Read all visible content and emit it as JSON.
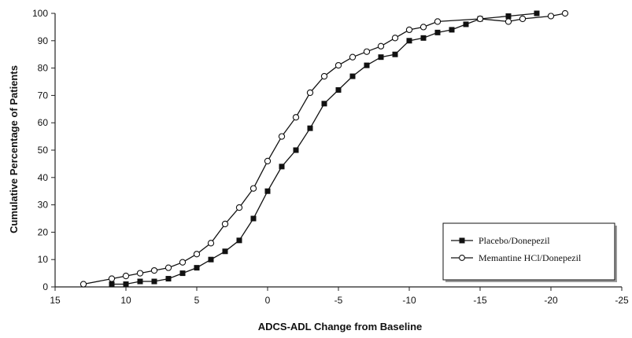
{
  "chart_data": {
    "type": "line",
    "title": "",
    "xlabel": "ADCS-ADL Change from Baseline",
    "ylabel": "Cumulative Percentage of Patients",
    "xlim": [
      15,
      -25
    ],
    "ylim": [
      0,
      100
    ],
    "x_ticks": [
      15,
      10,
      5,
      0,
      -5,
      -10,
      -15,
      -20,
      -25
    ],
    "y_ticks": [
      0,
      10,
      20,
      30,
      40,
      50,
      60,
      70,
      80,
      90,
      100
    ],
    "grid": false,
    "legend_position": "bottom-right",
    "series": [
      {
        "name": "Placebo/Donepezil",
        "marker": "filled-square",
        "color": "#111111",
        "points": [
          [
            11,
            1
          ],
          [
            10,
            1
          ],
          [
            9,
            2
          ],
          [
            8,
            2
          ],
          [
            7,
            3
          ],
          [
            6,
            5
          ],
          [
            5,
            7
          ],
          [
            4,
            10
          ],
          [
            3,
            13
          ],
          [
            2,
            17
          ],
          [
            1,
            25
          ],
          [
            0,
            35
          ],
          [
            -1,
            44
          ],
          [
            -2,
            50
          ],
          [
            -3,
            58
          ],
          [
            -4,
            67
          ],
          [
            -5,
            72
          ],
          [
            -6,
            77
          ],
          [
            -7,
            81
          ],
          [
            -8,
            84
          ],
          [
            -9,
            85
          ],
          [
            -10,
            90
          ],
          [
            -11,
            91
          ],
          [
            -12,
            93
          ],
          [
            -13,
            94
          ],
          [
            -14,
            96
          ],
          [
            -15,
            98
          ],
          [
            -17,
            99
          ],
          [
            -19,
            100
          ]
        ]
      },
      {
        "name": "Memantine HCl/Donepezil",
        "marker": "open-circle",
        "color": "#111111",
        "points": [
          [
            13,
            1
          ],
          [
            11,
            3
          ],
          [
            10,
            4
          ],
          [
            9,
            5
          ],
          [
            8,
            6
          ],
          [
            7,
            7
          ],
          [
            6,
            9
          ],
          [
            5,
            12
          ],
          [
            4,
            16
          ],
          [
            3,
            23
          ],
          [
            2,
            29
          ],
          [
            1,
            36
          ],
          [
            0,
            46
          ],
          [
            -1,
            55
          ],
          [
            -2,
            62
          ],
          [
            -3,
            71
          ],
          [
            -4,
            77
          ],
          [
            -5,
            81
          ],
          [
            -6,
            84
          ],
          [
            -7,
            86
          ],
          [
            -8,
            88
          ],
          [
            -9,
            91
          ],
          [
            -10,
            94
          ],
          [
            -11,
            95
          ],
          [
            -12,
            97
          ],
          [
            -15,
            98
          ],
          [
            -17,
            97
          ],
          [
            -18,
            98
          ],
          [
            -20,
            99
          ],
          [
            -21,
            100
          ]
        ]
      }
    ]
  }
}
